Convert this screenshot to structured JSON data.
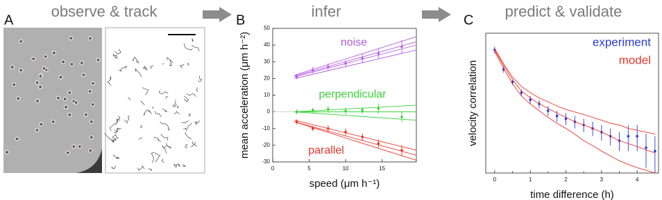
{
  "panels": [
    {
      "letter": "A",
      "heading": "observe & track"
    },
    {
      "letter": "B",
      "heading": "infer"
    },
    {
      "letter": "C",
      "heading": "predict & validate"
    }
  ],
  "chart_data": [
    {
      "type": "scatter",
      "x": [
        3.3,
        5.5,
        7.6,
        10,
        12.3,
        14.5,
        17.7
      ],
      "xlim": [
        0,
        19.7
      ],
      "ylim": [
        -30,
        50
      ],
      "xticks": [
        0,
        5,
        10,
        15
      ],
      "yticks": [
        -30,
        -20,
        -10,
        0,
        10,
        20,
        30,
        40,
        50
      ],
      "xlabel": "speed (μm h⁻¹)",
      "ylabel": "mean acceleration (μm h⁻²)",
      "fit_x": [
        3,
        19.7
      ],
      "series": [
        {
          "name": "noise",
          "color": "#b45ee0",
          "values": [
            21,
            25,
            27,
            29,
            32,
            35,
            39
          ],
          "errors": [
            1.5,
            2,
            2,
            2,
            2.5,
            3,
            4
          ],
          "fit": [
            [
              20,
              37
            ],
            [
              21,
              40
            ],
            [
              21.5,
              42
            ],
            [
              22,
              45
            ]
          ]
        },
        {
          "name": "perpendicular",
          "color": "#3ad23a",
          "values": [
            0,
            1,
            1.5,
            0.5,
            1,
            2,
            -3
          ],
          "errors": [
            1.5,
            1.5,
            2,
            2,
            2,
            3,
            3
          ],
          "fit": [
            [
              0,
              -5
            ],
            [
              0,
              0
            ],
            [
              0,
              4
            ]
          ]
        },
        {
          "name": "parallel",
          "color": "#e8352c",
          "values": [
            -6,
            -10,
            -10,
            -12,
            -15,
            -19,
            -23
          ],
          "errors": [
            1.5,
            1.5,
            2,
            2,
            2,
            2.5,
            3
          ],
          "fit": [
            [
              -5,
              -23
            ],
            [
              -6,
              -26
            ],
            [
              -6,
              -29
            ]
          ]
        }
      ]
    },
    {
      "type": "line",
      "log_y": true,
      "x": [
        0,
        0.25,
        0.5,
        0.75,
        1,
        1.25,
        1.5,
        1.75,
        2,
        2.25,
        2.5,
        2.75,
        3,
        3.25,
        3.5,
        3.75,
        4,
        4.25,
        4.5
      ],
      "xlim": [
        -0.25,
        4.6
      ],
      "ylim": [
        0.05,
        1
      ],
      "xticks": [
        0,
        1,
        2,
        3,
        4
      ],
      "minor_xticks": [
        0.5,
        1.5,
        2.5,
        3.5,
        4.5
      ],
      "xlabel": "time difference (h)",
      "ylabel": "velocity correlation",
      "series": [
        {
          "name": "experiment",
          "color": "#2a3ad6",
          "values": [
            0.7,
            0.46,
            0.35,
            0.28,
            0.24,
            0.22,
            0.19,
            0.17,
            0.16,
            0.15,
            0.14,
            0.13,
            0.12,
            0.11,
            0.1,
            0.11,
            0.11,
            0.086,
            0.08
          ],
          "errors": [
            0.05,
            0.03,
            0.02,
            0.02,
            0.02,
            0.02,
            0.02,
            0.02,
            0.02,
            0.02,
            0.02,
            0.02,
            0.02,
            0.02,
            0.02,
            0.03,
            0.03,
            0.03,
            0.03
          ]
        },
        {
          "name": "model",
          "color": "#e8352c",
          "lines": [
            [
              0.7,
              0.5,
              0.37,
              0.29,
              0.25,
              0.22,
              0.2,
              0.18,
              0.165,
              0.15,
              0.14,
              0.13,
              0.12,
              0.11,
              0.1,
              0.094,
              0.088,
              0.082,
              0.077
            ],
            [
              0.72,
              0.52,
              0.39,
              0.32,
              0.28,
              0.25,
              0.23,
              0.21,
              0.195,
              0.185,
              0.175,
              0.165,
              0.155,
              0.145,
              0.14,
              0.13,
              0.125,
              0.12,
              0.115
            ],
            [
              0.68,
              0.47,
              0.34,
              0.26,
              0.22,
              0.19,
              0.165,
              0.145,
              0.13,
              0.115,
              0.1,
              0.09,
              0.08,
              0.072,
              0.065,
              0.06,
              0.056,
              0.053,
              0.05
            ]
          ]
        }
      ]
    }
  ]
}
